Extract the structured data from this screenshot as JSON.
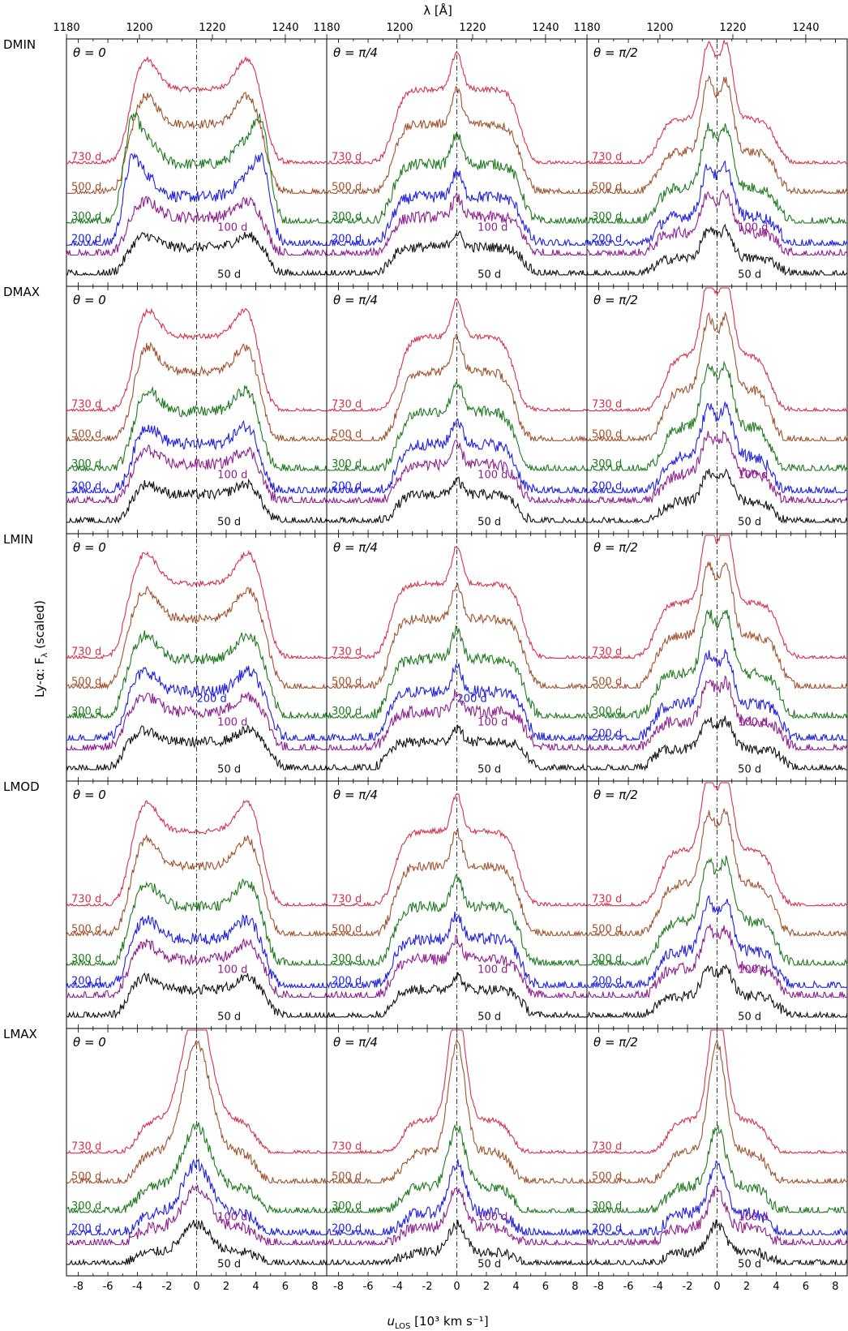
{
  "figure": {
    "ylabel": "Ly-α:  F",
    "ylabel_sub": "λ",
    "ylabel_tail": " (scaled)",
    "xlabel": "u",
    "xlabel_sub": "LOS",
    "xlabel_tail": " [10³ km s⁻¹]",
    "top_xlabel": "λ [Å]",
    "top_ticks": [
      "1180",
      "1200",
      "1220",
      "1240"
    ],
    "bottom_ticks": [
      "-8",
      "-6",
      "-4",
      "-2",
      "0",
      "2",
      "4",
      "6",
      "8"
    ]
  },
  "chart_data": {
    "type": "line",
    "x_axis": {
      "label": "u_LOS [10^3 km s^-1]",
      "range": [
        -8.8,
        8.8
      ],
      "ticks": [
        -8,
        -6,
        -4,
        -2,
        0,
        2,
        4,
        6,
        8
      ]
    },
    "top_axis": {
      "label": "λ [Å]",
      "ticks": [
        1180,
        1200,
        1220,
        1240
      ]
    },
    "y_axis": {
      "label": "Ly-α: F_λ (scaled)"
    },
    "models": [
      "DMIN",
      "DMAX",
      "LMIN",
      "LMOD",
      "LMAX"
    ],
    "angles": [
      "θ = 0",
      "θ = π/4",
      "θ = π/2"
    ],
    "epochs": [
      {
        "label": "730 d",
        "color": "#d6304a"
      },
      {
        "label": "500 d",
        "color": "#a0522d"
      },
      {
        "label": "300 d",
        "color": "#1e7a1e"
      },
      {
        "label": "200 d",
        "color": "#1f1fe0"
      },
      {
        "label": "100 d",
        "color": "#8e1e8e"
      },
      {
        "label": "50 d",
        "color": "#111111"
      }
    ],
    "reference_line": {
      "x": 0,
      "style": "dash-dot"
    }
  }
}
